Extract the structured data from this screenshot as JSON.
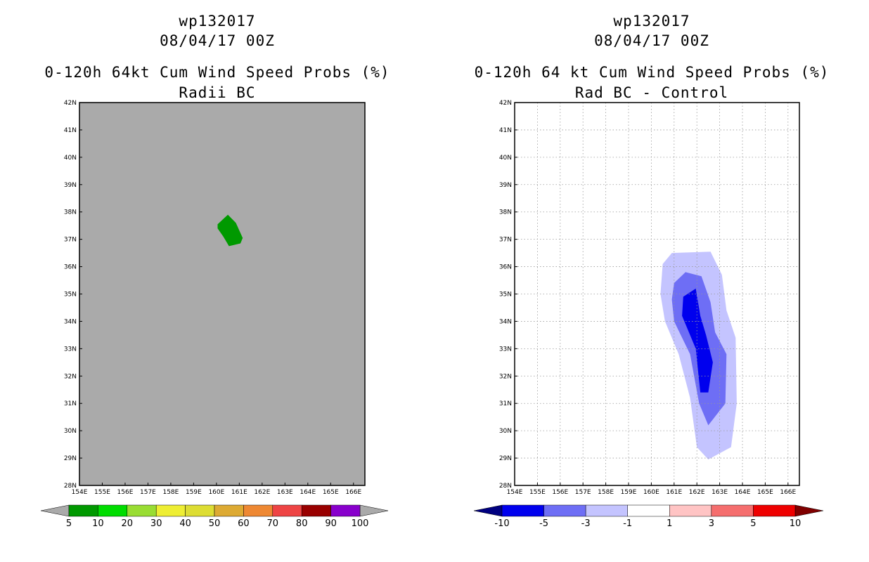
{
  "chart_data": [
    {
      "type": "contour-map",
      "title_lines": [
        "wp132017",
        "08/04/17 00Z",
        "0-120h 64kt Cum Wind Speed Probs (%)",
        "Radii BC"
      ],
      "xaxis_ticks": [
        "154E",
        "155E",
        "156E",
        "157E",
        "158E",
        "159E",
        "160E",
        "161E",
        "162E",
        "163E",
        "164E",
        "165E",
        "166E"
      ],
      "yaxis_ticks": [
        "28N",
        "29N",
        "30N",
        "31N",
        "32N",
        "33N",
        "34N",
        "35N",
        "36N",
        "37N",
        "38N",
        "39N",
        "40N",
        "41N",
        "42N"
      ],
      "lon_range": [
        154,
        166.5
      ],
      "lat_range": [
        28,
        42
      ],
      "background_color": "#aaaaaa",
      "grid": false,
      "contours": [
        {
          "level": "5-10",
          "color": "#009900",
          "polygon": [
            [
              160.05,
              37.55
            ],
            [
              160.5,
              37.9
            ],
            [
              160.85,
              37.6
            ],
            [
              161.15,
              37.05
            ],
            [
              161.05,
              36.85
            ],
            [
              160.55,
              36.75
            ],
            [
              160.3,
              37.1
            ],
            [
              160.05,
              37.4
            ]
          ]
        }
      ],
      "colorbar": {
        "labels": [
          "5",
          "10",
          "20",
          "30",
          "40",
          "50",
          "60",
          "70",
          "80",
          "90",
          "100"
        ],
        "colors": [
          "#009900",
          "#00dd00",
          "#99dd33",
          "#eeee33",
          "#dddd33",
          "#ddaa33",
          "#ee8833",
          "#ee4444",
          "#990000",
          "#8800cc"
        ],
        "end_low_color": "#aaaaaa",
        "end_high_color": "#aaaaaa"
      }
    },
    {
      "type": "contour-map",
      "title_lines": [
        "wp132017",
        "08/04/17 00Z",
        "0-120h 64 kt Cum Wind Speed Probs (%)",
        "Rad BC - Control"
      ],
      "xaxis_ticks": [
        "154E",
        "155E",
        "156E",
        "157E",
        "158E",
        "159E",
        "160E",
        "161E",
        "162E",
        "163E",
        "164E",
        "165E",
        "166E"
      ],
      "yaxis_ticks": [
        "28N",
        "29N",
        "30N",
        "31N",
        "32N",
        "33N",
        "34N",
        "35N",
        "36N",
        "37N",
        "38N",
        "39N",
        "40N",
        "41N",
        "42N"
      ],
      "lon_range": [
        154,
        166.5
      ],
      "lat_range": [
        28,
        42
      ],
      "background_color": "#ffffff",
      "grid": true,
      "contours": [
        {
          "level": "-3 to -1",
          "color": "#c4c4ff",
          "polygon": [
            [
              160.5,
              36.1
            ],
            [
              160.9,
              36.5
            ],
            [
              162.6,
              36.55
            ],
            [
              163.1,
              35.7
            ],
            [
              163.3,
              34.4
            ],
            [
              163.7,
              33.4
            ],
            [
              163.75,
              31.0
            ],
            [
              163.5,
              29.4
            ],
            [
              162.5,
              28.95
            ],
            [
              162.0,
              29.4
            ],
            [
              161.7,
              31.2
            ],
            [
              161.2,
              32.8
            ],
            [
              160.6,
              34.0
            ],
            [
              160.4,
              35.0
            ]
          ]
        },
        {
          "level": "-5 to -3",
          "color": "#6e6ef5",
          "polygon": [
            [
              161.0,
              35.4
            ],
            [
              161.5,
              35.8
            ],
            [
              162.2,
              35.65
            ],
            [
              162.6,
              34.7
            ],
            [
              162.8,
              33.6
            ],
            [
              163.3,
              32.8
            ],
            [
              163.25,
              31.0
            ],
            [
              162.5,
              30.2
            ],
            [
              162.1,
              31.0
            ],
            [
              161.7,
              32.8
            ],
            [
              161.0,
              34.0
            ],
            [
              160.9,
              34.8
            ]
          ]
        },
        {
          "level": "-10 to -5",
          "color": "#0000ee",
          "polygon": [
            [
              161.4,
              34.9
            ],
            [
              161.95,
              35.2
            ],
            [
              162.15,
              34.2
            ],
            [
              162.4,
              33.5
            ],
            [
              162.7,
              32.5
            ],
            [
              162.5,
              31.4
            ],
            [
              162.15,
              31.4
            ],
            [
              162.05,
              32.2
            ],
            [
              161.95,
              33.0
            ],
            [
              161.35,
              34.2
            ]
          ]
        }
      ],
      "colorbar": {
        "labels": [
          "-10",
          "-5",
          "-3",
          "-1",
          "1",
          "3",
          "5",
          "10"
        ],
        "colors": [
          "#0000ee",
          "#6e6ef5",
          "#c4c4ff",
          "#ffffff",
          "#ffc4c4",
          "#f56e6e",
          "#ee0000"
        ],
        "end_low_color": "#000080",
        "end_high_color": "#800000"
      }
    }
  ]
}
